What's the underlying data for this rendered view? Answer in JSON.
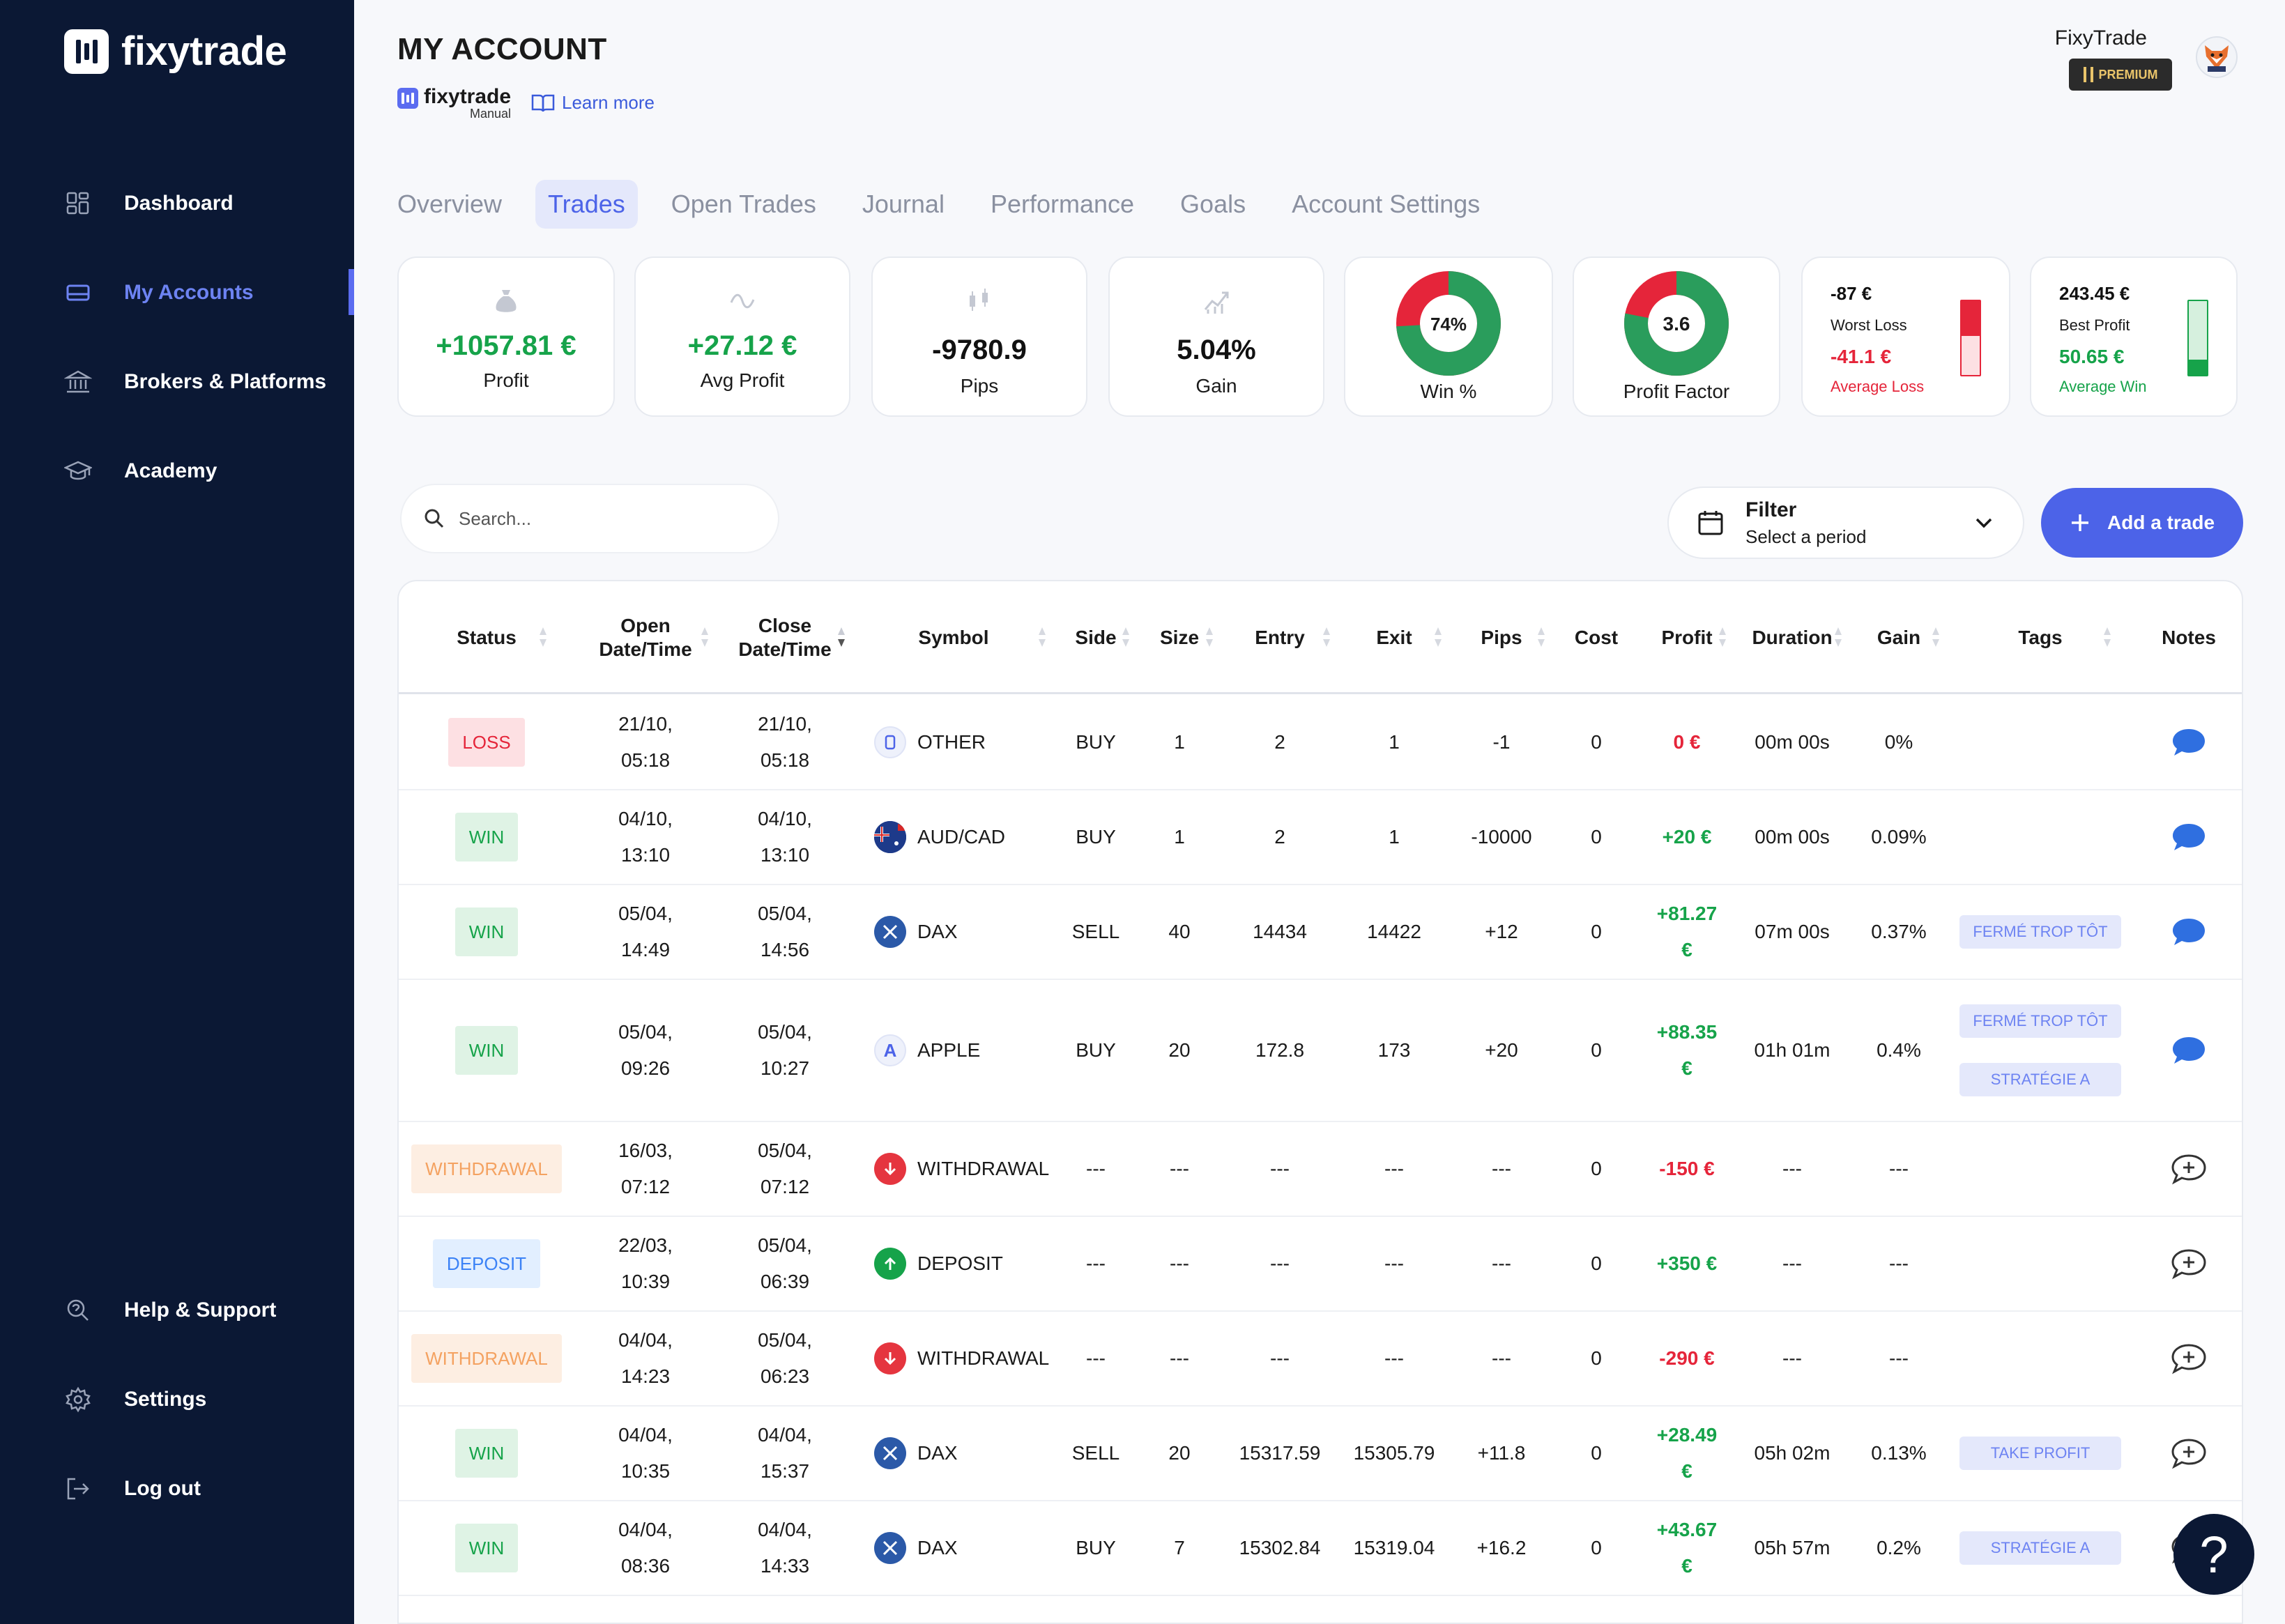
{
  "app": {
    "name": "fixytrade"
  },
  "sidebar": {
    "items": [
      {
        "label": "Dashboard",
        "icon": "dashboard-icon"
      },
      {
        "label": "My Accounts",
        "icon": "card-icon"
      },
      {
        "label": "Brokers & Platforms",
        "icon": "bank-icon"
      },
      {
        "label": "Academy",
        "icon": "graduation-cap-icon"
      },
      {
        "label": "Help & Support",
        "icon": "support-icon"
      },
      {
        "label": "Settings",
        "icon": "gear-icon"
      },
      {
        "label": "Log out",
        "icon": "logout-icon"
      }
    ]
  },
  "header": {
    "title": "MY ACCOUNT",
    "account_brand": "fixytrade",
    "account_type": "Manual",
    "learn_more": "Learn more",
    "user_name": "FixyTrade",
    "badge": "PREMIUM"
  },
  "tabs": [
    {
      "label": "Overview"
    },
    {
      "label": "Trades"
    },
    {
      "label": "Open Trades"
    },
    {
      "label": "Journal"
    },
    {
      "label": "Performance"
    },
    {
      "label": "Goals"
    },
    {
      "label": "Account Settings"
    }
  ],
  "stats": {
    "profit": {
      "value": "+1057.81 €",
      "label": "Profit"
    },
    "avg_profit": {
      "value": "+27.12 €",
      "label": "Avg Profit"
    },
    "pips": {
      "value": "-9780.9",
      "label": "Pips"
    },
    "gain": {
      "value": "5.04%",
      "label": "Gain"
    },
    "win_pct": {
      "value": "74%",
      "label": "Win %",
      "fraction": 0.74
    },
    "profit_factor": {
      "value": "3.6",
      "label": "Profit Factor",
      "fraction": 0.78
    },
    "loss": {
      "worst": "-87 €",
      "worst_label": "Worst Loss",
      "avg": "-41.1 €",
      "avg_label": "Average Loss",
      "fill_fraction": 0.47
    },
    "win": {
      "best": "243.45 €",
      "best_label": "Best Profit",
      "avg": "50.65 €",
      "avg_label": "Average Win",
      "fill_fraction": 0.21
    },
    "colors": {
      "green": "#16a34a",
      "red": "#e5253a"
    }
  },
  "search": {
    "placeholder": "Search..."
  },
  "filter": {
    "title": "Filter",
    "subtitle": "Select a period"
  },
  "add_trade": "Add a trade",
  "table": {
    "headers": {
      "status": "Status",
      "open1": "Open",
      "open2": "Date/Time",
      "close1": "Close",
      "close2": "Date/Time",
      "symbol": "Symbol",
      "side": "Side",
      "size": "Size",
      "entry": "Entry",
      "exit": "Exit",
      "pips": "Pips",
      "cost": "Cost",
      "profit": "Profit",
      "duration": "Duration",
      "gain": "Gain",
      "tags": "Tags",
      "notes": "Notes"
    },
    "rows": [
      {
        "status": "LOSS",
        "kind": "loss",
        "open": [
          "21/10,",
          "05:18"
        ],
        "close": [
          "21/10,",
          "05:18"
        ],
        "symbol": "OTHER",
        "icon": "other-icon",
        "side": "BUY",
        "size": "1",
        "entry": "2",
        "exit": "1",
        "pips": "-1",
        "cost": "0",
        "profit": [
          "0 €"
        ],
        "profit_color": "red",
        "duration": "00m 00s",
        "gain": "0%",
        "tags": [],
        "note": "chat-bubble-icon"
      },
      {
        "status": "WIN",
        "kind": "win",
        "open": [
          "04/10,",
          "13:10"
        ],
        "close": [
          "04/10,",
          "13:10"
        ],
        "symbol": "AUD/CAD",
        "icon": "flag-aud-icon",
        "side": "BUY",
        "size": "1",
        "entry": "2",
        "exit": "1",
        "pips": "-10000",
        "cost": "0",
        "profit": [
          "+20 €"
        ],
        "profit_color": "green",
        "duration": "00m 00s",
        "gain": "0.09%",
        "tags": [],
        "note": "chat-bubble-icon"
      },
      {
        "status": "WIN",
        "kind": "win",
        "open": [
          "05/04,",
          "14:49"
        ],
        "close": [
          "05/04,",
          "14:56"
        ],
        "symbol": "DAX",
        "icon": "dax-icon",
        "side": "SELL",
        "size": "40",
        "entry": "14434",
        "exit": "14422",
        "pips": "+12",
        "cost": "0",
        "profit": [
          "+81.27",
          "€"
        ],
        "profit_color": "green",
        "duration": "07m 00s",
        "gain": "0.37%",
        "tags": [
          "FERMÉ TROP TÔT"
        ],
        "note": "chat-bubble-icon"
      },
      {
        "status": "WIN",
        "kind": "win",
        "open": [
          "05/04,",
          "09:26"
        ],
        "close": [
          "05/04,",
          "10:27"
        ],
        "symbol": "APPLE",
        "icon": "apple-icon",
        "side": "BUY",
        "size": "20",
        "entry": "172.8",
        "exit": "173",
        "pips": "+20",
        "cost": "0",
        "profit": [
          "+88.35",
          "€"
        ],
        "profit_color": "green",
        "duration": "01h 01m",
        "gain": "0.4%",
        "tags": [
          "FERMÉ TROP TÔT",
          "STRATÉGIE A"
        ],
        "note": "chat-bubble-icon"
      },
      {
        "status": "WITHDRAWAL",
        "kind": "wd",
        "open": [
          "16/03,",
          "07:12"
        ],
        "close": [
          "05/04,",
          "07:12"
        ],
        "symbol": "WITHDRAWAL",
        "icon": "withdrawal-icon",
        "side": "---",
        "size": "---",
        "entry": "---",
        "exit": "---",
        "pips": "---",
        "cost": "0",
        "profit": [
          "-150 €"
        ],
        "profit_color": "red",
        "duration": "---",
        "gain": "---",
        "tags": [],
        "note": "add-note-icon"
      },
      {
        "status": "DEPOSIT",
        "kind": "dep",
        "open": [
          "22/03,",
          "10:39"
        ],
        "close": [
          "05/04,",
          "06:39"
        ],
        "symbol": "DEPOSIT",
        "icon": "deposit-icon",
        "side": "---",
        "size": "---",
        "entry": "---",
        "exit": "---",
        "pips": "---",
        "cost": "0",
        "profit": [
          "+350 €"
        ],
        "profit_color": "green",
        "duration": "---",
        "gain": "---",
        "tags": [],
        "note": "add-note-icon"
      },
      {
        "status": "WITHDRAWAL",
        "kind": "wd",
        "open": [
          "04/04,",
          "14:23"
        ],
        "close": [
          "05/04,",
          "06:23"
        ],
        "symbol": "WITHDRAWAL",
        "icon": "withdrawal-icon",
        "side": "---",
        "size": "---",
        "entry": "---",
        "exit": "---",
        "pips": "---",
        "cost": "0",
        "profit": [
          "-290 €"
        ],
        "profit_color": "red",
        "duration": "---",
        "gain": "---",
        "tags": [],
        "note": "add-note-icon"
      },
      {
        "status": "WIN",
        "kind": "win",
        "open": [
          "04/04,",
          "10:35"
        ],
        "close": [
          "04/04,",
          "15:37"
        ],
        "symbol": "DAX",
        "icon": "dax-icon",
        "side": "SELL",
        "size": "20",
        "entry": "15317.59",
        "exit": "15305.79",
        "pips": "+11.8",
        "cost": "0",
        "profit": [
          "+28.49",
          "€"
        ],
        "profit_color": "green",
        "duration": "05h 02m",
        "gain": "0.13%",
        "tags": [
          "TAKE PROFIT"
        ],
        "note": "add-note-icon"
      },
      {
        "status": "WIN",
        "kind": "win",
        "open": [
          "04/04,",
          "08:36"
        ],
        "close": [
          "04/04,",
          "14:33"
        ],
        "symbol": "DAX",
        "icon": "dax-icon",
        "side": "BUY",
        "size": "7",
        "entry": "15302.84",
        "exit": "15319.04",
        "pips": "+16.2",
        "cost": "0",
        "profit": [
          "+43.67",
          "€"
        ],
        "profit_color": "green",
        "duration": "05h 57m",
        "gain": "0.2%",
        "tags": [
          "STRATÉGIE A"
        ],
        "note": "add-note-icon"
      }
    ]
  },
  "help_button": "?"
}
